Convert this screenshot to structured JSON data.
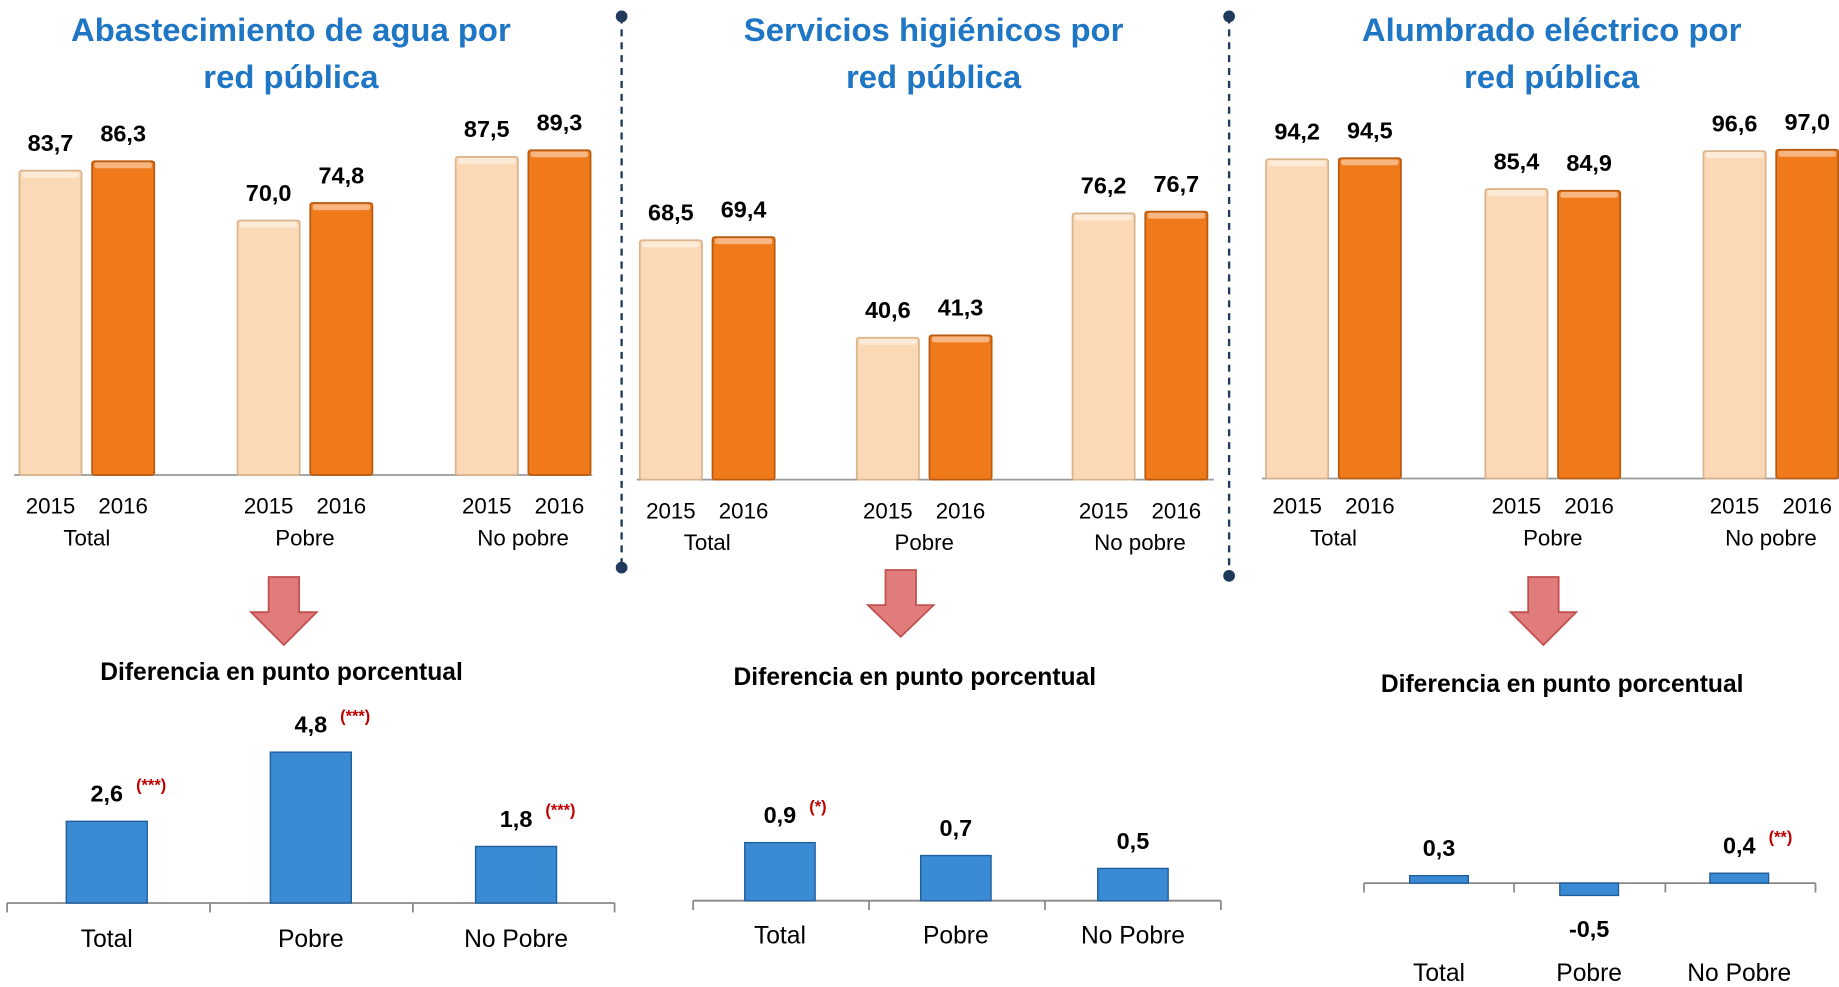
{
  "chart_data": [
    {
      "type": "bar",
      "title": "Abastecimiento de agua por\nred pública",
      "categories": [
        "Total",
        "Pobre",
        "No pobre"
      ],
      "series": [
        {
          "name": "2015",
          "color": "#fcd9b6",
          "values": [
            83.7,
            70.0,
            87.5
          ],
          "value_labels": [
            "83,7",
            "70,0",
            "87,5"
          ]
        },
        {
          "name": "2016",
          "color": "#f07a1a",
          "values": [
            86.3,
            74.8,
            89.3
          ],
          "value_labels": [
            "86,3",
            "74,8",
            "89,3"
          ]
        }
      ]
    },
    {
      "type": "bar",
      "title": "Servicios higiénicos por\nred pública",
      "categories": [
        "Total",
        "Pobre",
        "No pobre"
      ],
      "series": [
        {
          "name": "2015",
          "color": "#fcd9b6",
          "values": [
            68.5,
            40.6,
            76.2
          ],
          "value_labels": [
            "68,5",
            "40,6",
            "76,2"
          ]
        },
        {
          "name": "2016",
          "color": "#f07a1a",
          "values": [
            69.4,
            41.3,
            76.7
          ],
          "value_labels": [
            "69,4",
            "41,3",
            "76,7"
          ]
        }
      ]
    },
    {
      "type": "bar",
      "title": "Alumbrado eléctrico por\nred pública",
      "categories": [
        "Total",
        "Pobre",
        "No pobre"
      ],
      "series": [
        {
          "name": "2015",
          "color": "#fcd9b6",
          "values": [
            94.2,
            85.4,
            96.6
          ],
          "value_labels": [
            "94,2",
            "85,4",
            "96,6"
          ]
        },
        {
          "name": "2016",
          "color": "#f07a1a",
          "values": [
            94.5,
            84.9,
            97.0
          ],
          "value_labels": [
            "94,5",
            "84,9",
            "97,0"
          ]
        }
      ]
    },
    {
      "type": "bar",
      "title": "Diferencia en punto porcentual",
      "categories": [
        "Total",
        "Pobre",
        "No Pobre"
      ],
      "color": "#3b8bd4",
      "values": [
        2.6,
        4.8,
        1.8
      ],
      "value_labels": [
        "2,6",
        "4,8",
        "1,8"
      ],
      "significance": [
        "(***)",
        "(***)",
        "(***)"
      ]
    },
    {
      "type": "bar",
      "title": "Diferencia en punto porcentual",
      "categories": [
        "Total",
        "Pobre",
        "No Pobre"
      ],
      "color": "#3b8bd4",
      "values": [
        0.9,
        0.7,
        0.5
      ],
      "value_labels": [
        "0,9",
        "0,7",
        "0,5"
      ],
      "significance": [
        "(*)",
        null,
        null
      ]
    },
    {
      "type": "bar",
      "title": "Diferencia en punto porcentual",
      "categories": [
        "Total",
        "Pobre",
        "No Pobre"
      ],
      "color": "#3b8bd4",
      "values": [
        0.3,
        -0.5,
        0.4
      ],
      "value_labels": [
        "0,3",
        "-0,5",
        "0,4"
      ],
      "significance": [
        null,
        null,
        "(**)"
      ]
    }
  ]
}
